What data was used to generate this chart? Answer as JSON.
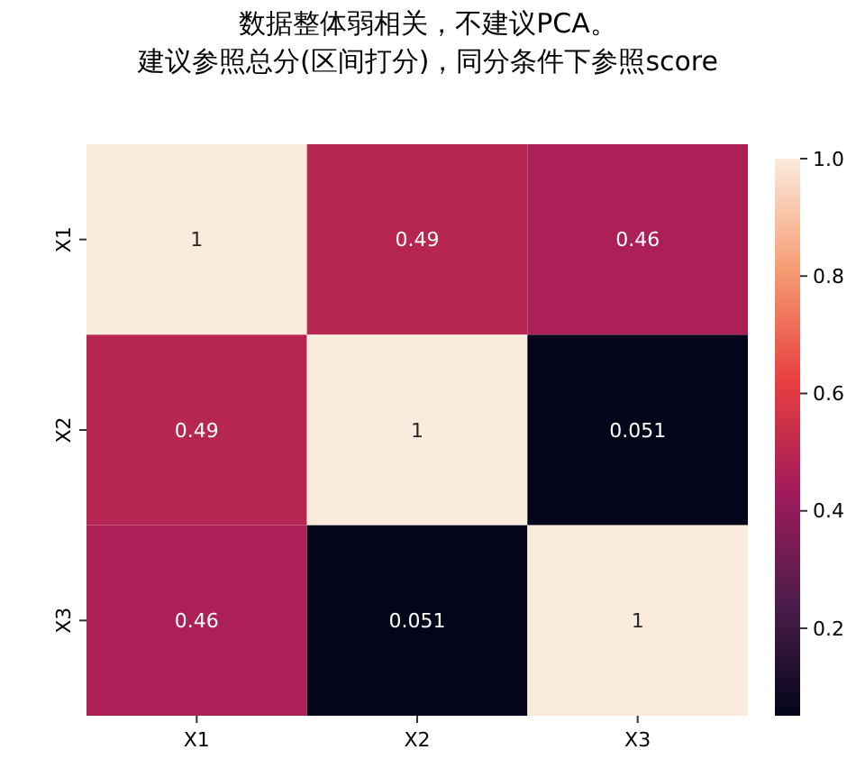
{
  "chart_data": {
    "type": "heatmap",
    "title": "数据整体弱相关，不建议PCA。",
    "subtitle": "建议参照总分(区间打分)，同分条件下参照score",
    "categories": [
      "X1",
      "X2",
      "X3"
    ],
    "y_categories": [
      "X1",
      "X2",
      "X3"
    ],
    "cells": [
      [
        1,
        0.49,
        0.46
      ],
      [
        0.49,
        1,
        0.051
      ],
      [
        0.46,
        0.051,
        1
      ]
    ],
    "cell_labels": [
      [
        "1",
        "0.49",
        "0.46"
      ],
      [
        "0.49",
        "1",
        "0.051"
      ],
      [
        "0.46",
        "0.051",
        "1"
      ]
    ],
    "clim": [
      0.051,
      1
    ],
    "cticks": [
      0.2,
      0.4,
      0.6,
      0.8,
      {
        "value": 1,
        "label": "1.0"
      }
    ]
  }
}
